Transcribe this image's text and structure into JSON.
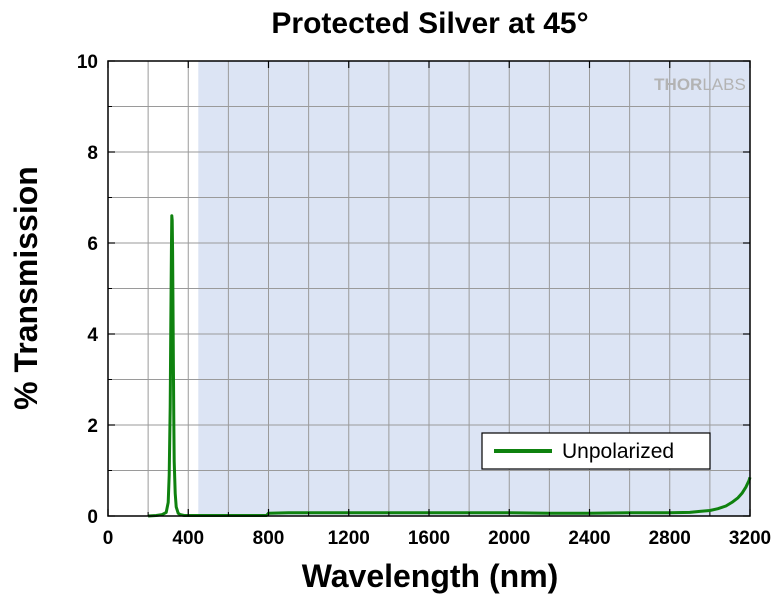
{
  "chart_data": {
    "type": "line",
    "title": "Protected Silver at 45°",
    "xlabel": "Wavelength (nm)",
    "ylabel": "% Transmission",
    "xlim": [
      0,
      3200
    ],
    "ylim": [
      0,
      10
    ],
    "x_ticks": [
      0,
      400,
      800,
      1200,
      1600,
      2000,
      2400,
      2800,
      3200
    ],
    "y_ticks": [
      0,
      2,
      4,
      6,
      8,
      10
    ],
    "x_tick_labels": [
      "0",
      "400",
      "800",
      "1200",
      "1600",
      "2000",
      "2400",
      "2800",
      "3200"
    ],
    "y_tick_labels": [
      "0",
      "2",
      "4",
      "6",
      "8",
      "10"
    ],
    "grid": true,
    "shaded_region": {
      "x_start": 450,
      "x_end": 3200,
      "color": "#dce4f4"
    },
    "legend": {
      "placement": "bottom-right"
    },
    "watermark": {
      "text_bold": "THOR",
      "text_light": "LABS"
    },
    "series": [
      {
        "name": "Unpolarized",
        "color": "#0f820f",
        "x": [
          200,
          240,
          270,
          290,
          300,
          305,
          310,
          313,
          316,
          318,
          320,
          322,
          324,
          326,
          328,
          330,
          335,
          340,
          350,
          360,
          380,
          420,
          500,
          600,
          700,
          790,
          800,
          900,
          1000,
          1200,
          1400,
          1600,
          1800,
          2000,
          2200,
          2400,
          2600,
          2800,
          2900,
          2950,
          3000,
          3040,
          3080,
          3110,
          3140,
          3160,
          3180,
          3195,
          3200
        ],
        "y": [
          0,
          0.01,
          0.03,
          0.08,
          0.3,
          0.9,
          2.4,
          4.2,
          5.8,
          6.6,
          6.5,
          5.8,
          4.6,
          3.3,
          2.1,
          1.2,
          0.5,
          0.2,
          0.06,
          0.03,
          0.01,
          0.01,
          0.01,
          0.01,
          0.01,
          0.01,
          0.06,
          0.07,
          0.07,
          0.07,
          0.07,
          0.07,
          0.07,
          0.07,
          0.06,
          0.06,
          0.07,
          0.07,
          0.08,
          0.1,
          0.12,
          0.16,
          0.22,
          0.3,
          0.4,
          0.5,
          0.64,
          0.78,
          0.85
        ]
      }
    ]
  }
}
